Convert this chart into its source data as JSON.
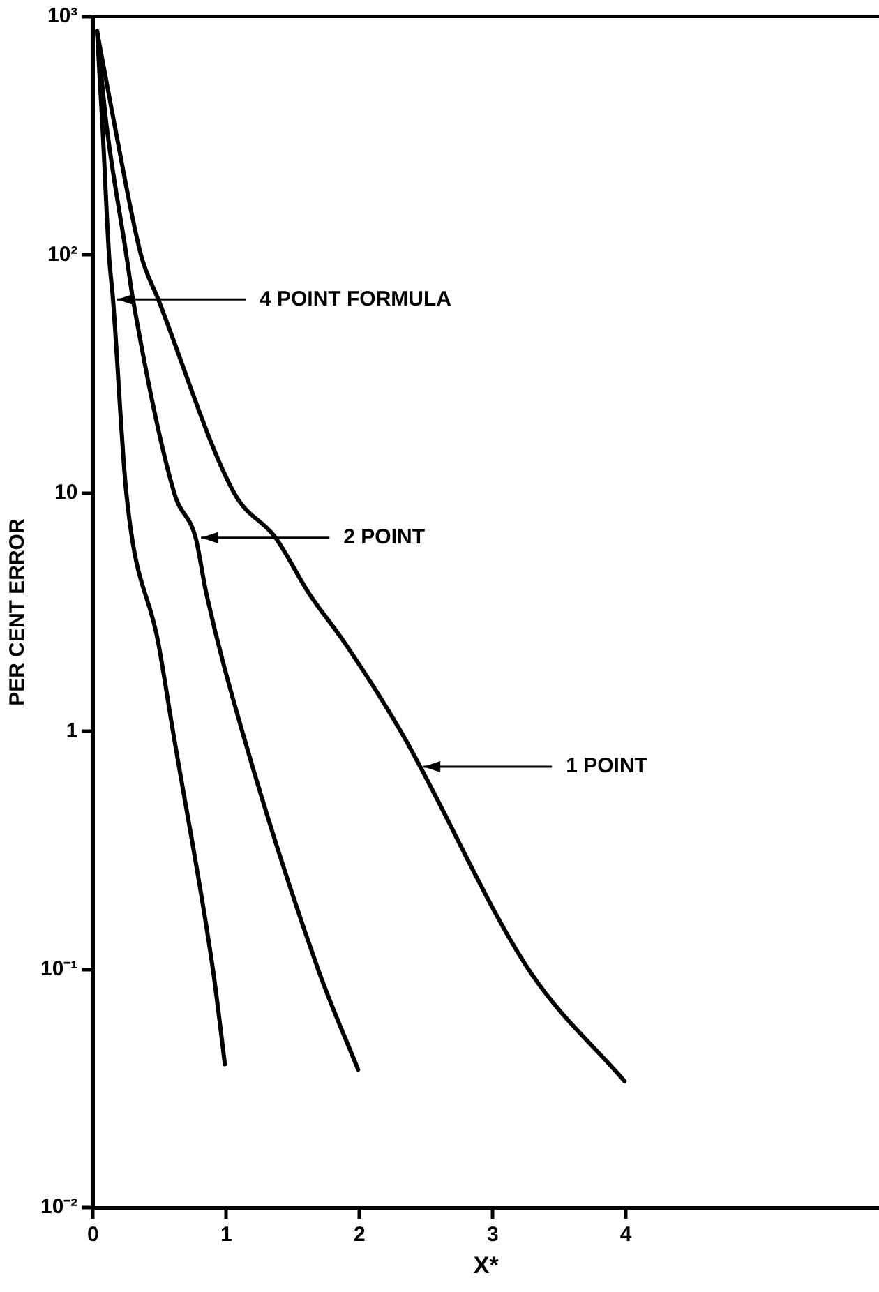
{
  "chart_data": {
    "type": "line",
    "xlabel": "X*",
    "ylabel": "PER CENT ERROR",
    "log": "y",
    "xlim": [
      0,
      5.9
    ],
    "xticks": [
      0,
      1,
      2,
      3,
      4
    ],
    "ylim": [
      0.01,
      1000
    ],
    "yticks": [
      {
        "value": 0.01,
        "label": "10⁻²"
      },
      {
        "value": 0.1,
        "label": "10⁻¹"
      },
      1,
      10,
      {
        "value": 100,
        "label": "10²"
      },
      {
        "value": 1000,
        "label": "10³"
      }
    ],
    "grid": false,
    "legend": false,
    "marker": "none",
    "line_style": "solid",
    "series": [
      {
        "color": "#000000",
        "x": [
          0.03,
          0.07,
          0.12,
          0.15,
          0.25,
          0.49,
          0.6,
          0.9,
          0.99
        ],
        "values": [
          870,
          355,
          100,
          65,
          10,
          2.35,
          1,
          0.1,
          0.04
        ]
      },
      {
        "color": "#000000",
        "x": [
          0.03,
          0.1,
          0.25,
          0.3,
          0.61,
          0.77,
          0.85,
          1.12,
          1.69,
          1.99
        ],
        "values": [
          870,
          355,
          100,
          65,
          10,
          6.5,
          3.8,
          1,
          0.1,
          0.038
        ]
      },
      {
        "color": "#000000",
        "x": [
          0.03,
          0.16,
          0.36,
          0.49,
          1.06,
          1.37,
          1.62,
          1.89,
          2.31,
          3.27,
          3.99
        ],
        "values": [
          870,
          355,
          100,
          65,
          10,
          6.5,
          3.8,
          2.35,
          1,
          0.1,
          0.034
        ]
      }
    ],
    "annotations": [
      {
        "text": "4 POINT FORMULA",
        "x": 0.15,
        "y": 65
      },
      {
        "text": "2 POINT",
        "x": 0.78,
        "y": 6.5
      },
      {
        "text": "1 POINT",
        "x": 2.45,
        "y": 0.71
      }
    ]
  }
}
